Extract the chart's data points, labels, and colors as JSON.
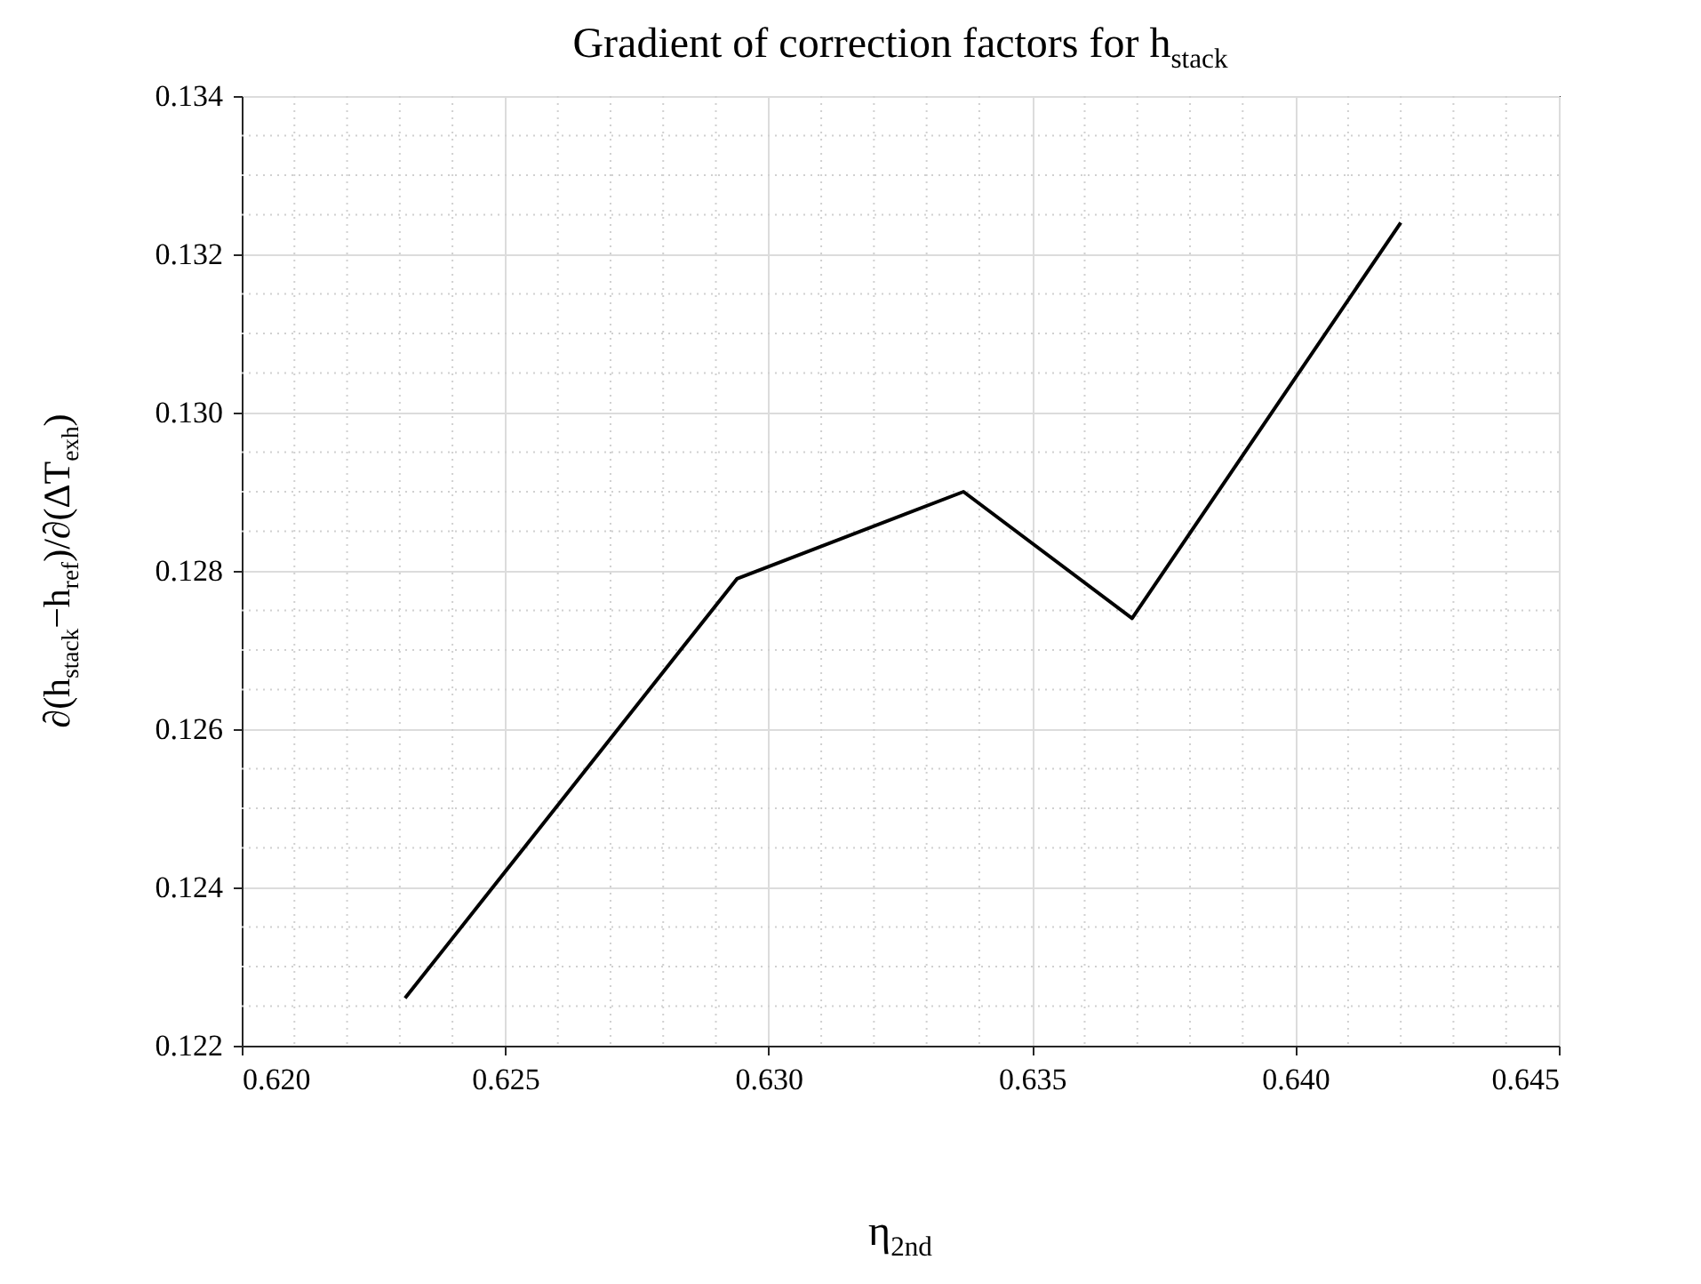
{
  "chart_data": {
    "type": "line",
    "title": "Gradient of correction factors for h$_{stack}$",
    "xlabel": "η$_{2nd}$",
    "ylabel": "∂(h$_{stack}$−h$_{ref}$)/∂(ΔT$_{exh}$)",
    "x": [
      0.6231,
      0.6294,
      0.6337,
      0.6369,
      0.642
    ],
    "series": [
      {
        "color": "#000000",
        "values": [
          0.1226,
          0.1279,
          0.129,
          0.1274,
          0.1324
        ]
      }
    ],
    "xlim": [
      0.62,
      0.645
    ],
    "xticks": [
      {
        "value": 0.62,
        "label": "0.620"
      },
      0.625,
      {
        "value": 0.63,
        "label": "0.630"
      },
      0.635,
      {
        "value": 0.64,
        "label": "0.640"
      },
      0.645
    ],
    "ylim": [
      0.122,
      0.134
    ],
    "yticks": [
      0.122,
      0.124,
      0.126,
      0.128,
      {
        "value": 0.13,
        "label": "0.130"
      },
      0.132,
      0.134
    ],
    "grid": true,
    "marker": "none",
    "line_style": "solid"
  }
}
